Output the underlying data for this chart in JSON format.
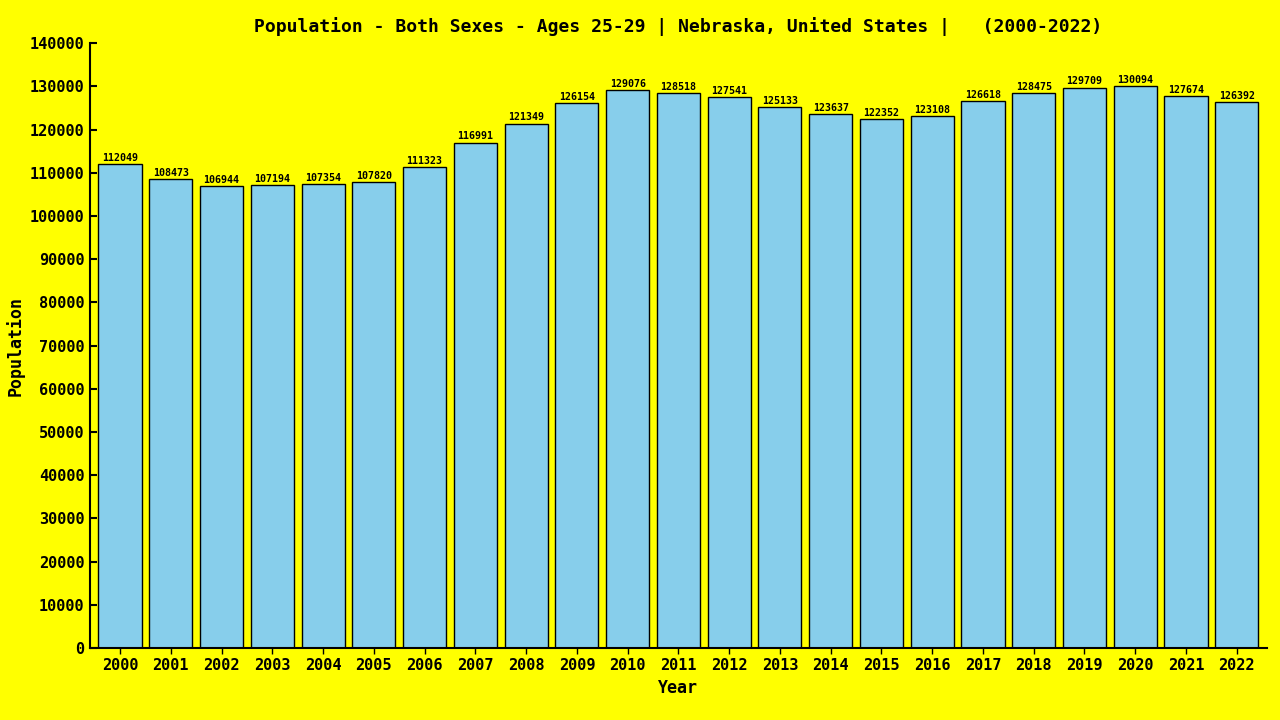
{
  "title": "Population - Both Sexes - Ages 25-29 | Nebraska, United States |   (2000-2022)",
  "xlabel": "Year",
  "ylabel": "Population",
  "background_color": "#FFFF00",
  "bar_color": "#87CEEB",
  "bar_edge_color": "#000000",
  "text_color": "#000000",
  "years": [
    2000,
    2001,
    2002,
    2003,
    2004,
    2005,
    2006,
    2007,
    2008,
    2009,
    2010,
    2011,
    2012,
    2013,
    2014,
    2015,
    2016,
    2017,
    2018,
    2019,
    2020,
    2021,
    2022
  ],
  "values": [
    112049,
    108473,
    106944,
    107194,
    107354,
    107820,
    111323,
    116991,
    121349,
    126154,
    129076,
    128518,
    127541,
    125133,
    123637,
    122352,
    123108,
    126618,
    128475,
    129709,
    130094,
    127674,
    126392
  ],
  "ylim": [
    0,
    140000
  ],
  "yticks": [
    0,
    10000,
    20000,
    30000,
    40000,
    50000,
    60000,
    70000,
    80000,
    90000,
    100000,
    110000,
    120000,
    130000,
    140000
  ],
  "title_fontsize": 13,
  "label_fontsize": 12,
  "tick_fontsize": 11,
  "value_fontsize": 7.2,
  "bar_width": 0.85
}
